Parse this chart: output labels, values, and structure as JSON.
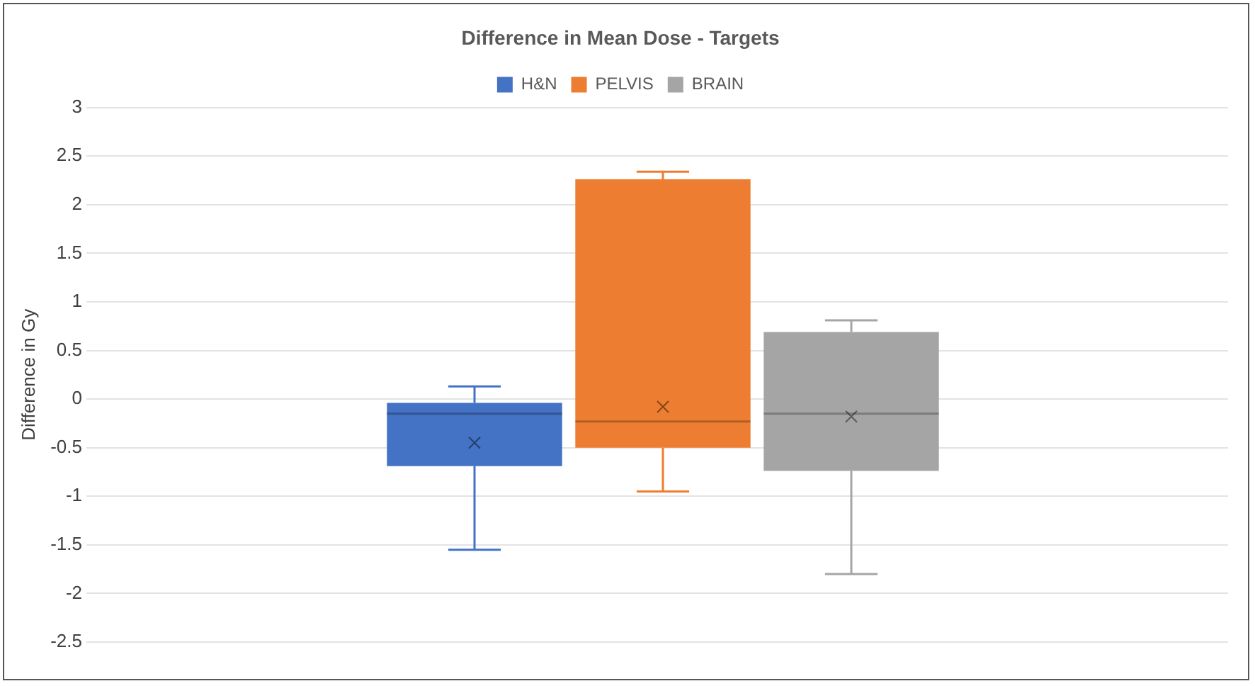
{
  "chart_data": {
    "type": "box",
    "title": "Difference in Mean Dose - Targets",
    "ylabel": "Difference in Gy",
    "categories": [
      null
    ],
    "series": [
      {
        "name": "H&N",
        "color": "#4472c4",
        "boxes": [
          {
            "low": -1.55,
            "q1": -0.69,
            "median": -0.15,
            "q3": -0.04,
            "high": 0.13,
            "mean": -0.45
          }
        ]
      },
      {
        "name": "PELVIS",
        "color": "#ed7d31",
        "boxes": [
          {
            "low": -0.95,
            "q1": -0.5,
            "median": -0.23,
            "q3": 2.26,
            "high": 2.34,
            "mean": -0.08
          }
        ]
      },
      {
        "name": "BRAIN",
        "color": "#a5a5a5",
        "boxes": [
          {
            "low": -1.8,
            "q1": -0.74,
            "median": -0.15,
            "q3": 0.69,
            "high": 0.81,
            "mean": -0.18
          }
        ]
      }
    ],
    "ylim": [
      -2.5,
      3
    ],
    "yticks": [
      -2.5,
      -2,
      -1.5,
      -1,
      -0.5,
      0,
      0.5,
      1,
      1.5,
      2,
      2.5,
      3
    ],
    "grid": "y",
    "legend": "top"
  }
}
